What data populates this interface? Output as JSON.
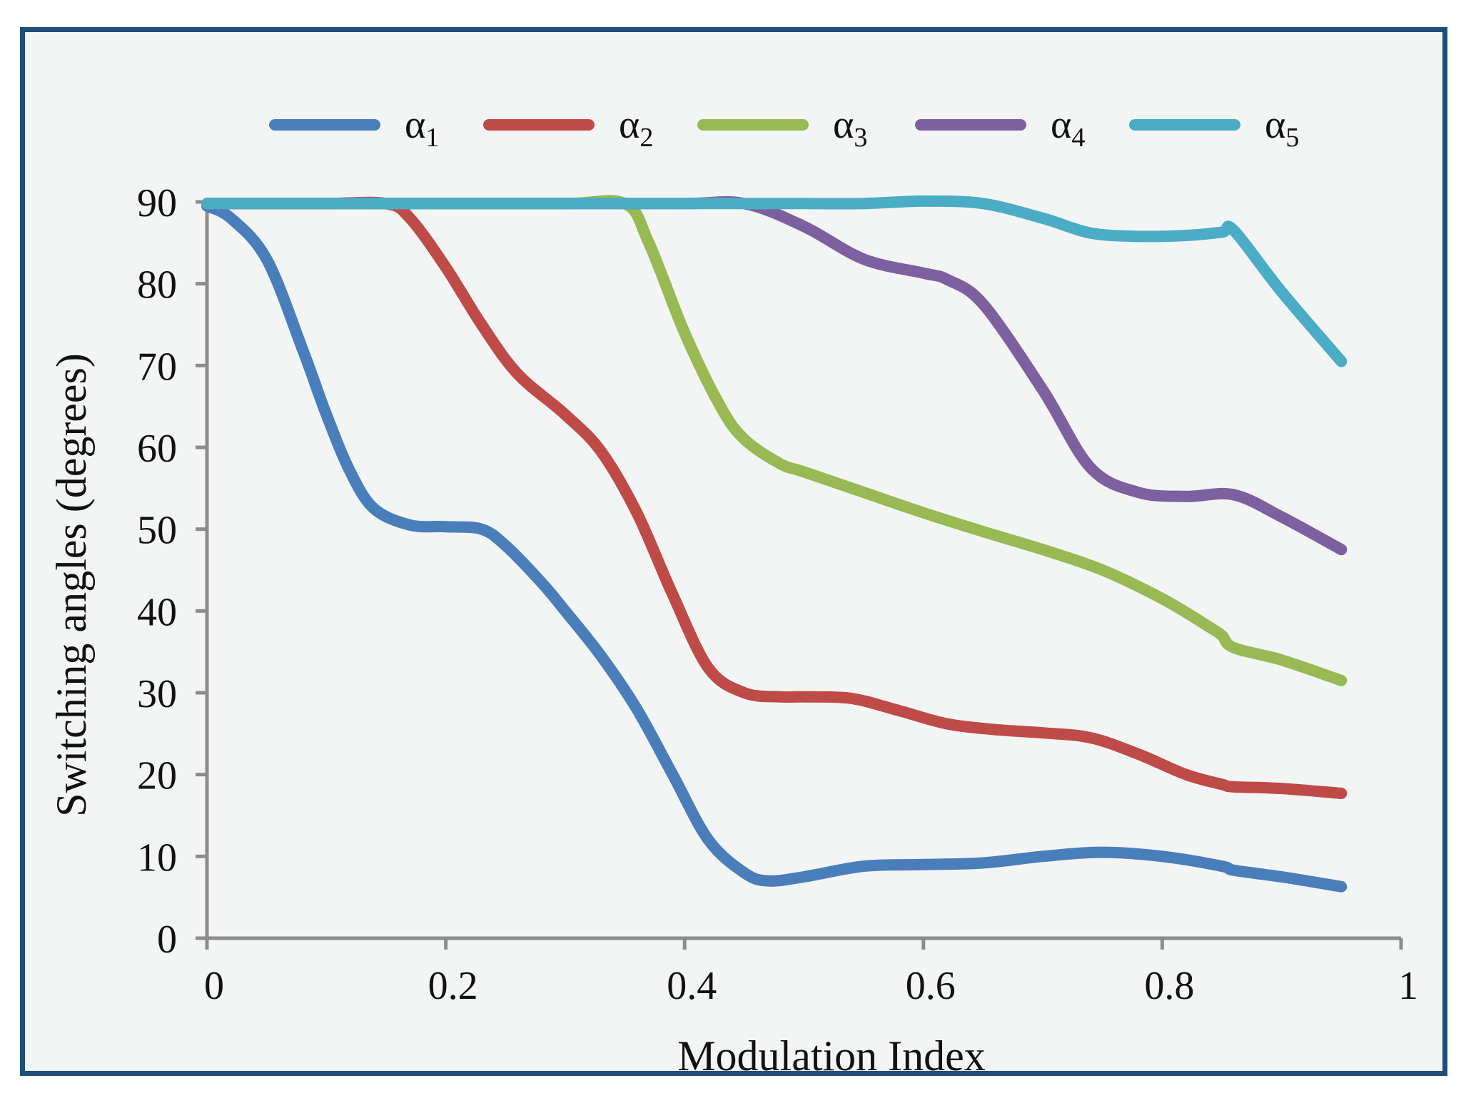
{
  "chart_data": {
    "type": "line",
    "title": "",
    "xlabel": "Modulation Index",
    "ylabel": "Switching angles (degrees)",
    "xlim": [
      0,
      1
    ],
    "ylim": [
      0,
      90
    ],
    "xticks": [
      0,
      0.2,
      0.4,
      0.6,
      0.8,
      1
    ],
    "xtick_labels": [
      "0",
      "0.2",
      "0.4",
      "0.6",
      "0.8",
      "1"
    ],
    "yticks": [
      0,
      10,
      20,
      30,
      40,
      50,
      60,
      70,
      80,
      90
    ],
    "ytick_labels": [
      "0",
      "10",
      "20",
      "30",
      "40",
      "50",
      "60",
      "70",
      "80",
      "90"
    ],
    "grid": false,
    "legend_position": "top",
    "series": [
      {
        "name": "α1",
        "symbol": "α",
        "subscript": "1",
        "color": "#4a7ebb",
        "x": [
          0,
          0.02,
          0.05,
          0.08,
          0.1,
          0.12,
          0.14,
          0.17,
          0.2,
          0.23,
          0.25,
          0.28,
          0.3,
          0.33,
          0.36,
          0.39,
          0.42,
          0.45,
          0.47,
          0.5,
          0.55,
          0.6,
          0.65,
          0.7,
          0.75,
          0.8,
          0.85,
          0.86,
          0.9,
          0.95
        ],
        "y": [
          89.5,
          88,
          83,
          72,
          64,
          57,
          52.5,
          50.5,
          50.3,
          50,
          48,
          43.5,
          40,
          34.5,
          28,
          20,
          12,
          8,
          7,
          7.5,
          8.8,
          9,
          9.2,
          10,
          10.5,
          10,
          8.8,
          8.3,
          7.5,
          6.3
        ]
      },
      {
        "name": "α2",
        "symbol": "α",
        "subscript": "2",
        "color": "#be4b48",
        "x": [
          0,
          0.05,
          0.1,
          0.15,
          0.17,
          0.2,
          0.23,
          0.26,
          0.3,
          0.33,
          0.36,
          0.39,
          0.42,
          0.45,
          0.48,
          0.5,
          0.54,
          0.58,
          0.62,
          0.66,
          0.7,
          0.74,
          0.78,
          0.82,
          0.85,
          0.86,
          0.9,
          0.95
        ],
        "y": [
          89.8,
          89.8,
          89.8,
          89.8,
          88,
          82,
          75,
          69,
          64,
          59.5,
          52,
          42,
          33,
          30,
          29.5,
          29.5,
          29.3,
          27.8,
          26.2,
          25.5,
          25.1,
          24.5,
          22.5,
          20,
          18.8,
          18.5,
          18.3,
          17.7
        ]
      },
      {
        "name": "α3",
        "symbol": "α",
        "subscript": "3",
        "color": "#98b954",
        "x": [
          0,
          0.1,
          0.2,
          0.3,
          0.35,
          0.37,
          0.4,
          0.43,
          0.45,
          0.48,
          0.5,
          0.55,
          0.6,
          0.65,
          0.7,
          0.75,
          0.8,
          0.84,
          0.85,
          0.86,
          0.9,
          0.95
        ],
        "y": [
          89.8,
          89.8,
          89.8,
          89.8,
          89.8,
          85,
          74,
          65,
          61,
          58,
          57,
          54.5,
          52,
          49.7,
          47.5,
          45,
          41.5,
          38,
          37,
          35.5,
          34,
          31.5
        ]
      },
      {
        "name": "α4",
        "symbol": "α",
        "subscript": "4",
        "color": "#7d60a0",
        "x": [
          0,
          0.1,
          0.2,
          0.3,
          0.4,
          0.45,
          0.5,
          0.55,
          0.6,
          0.62,
          0.65,
          0.7,
          0.74,
          0.78,
          0.82,
          0.86,
          0.9,
          0.95
        ],
        "y": [
          89.8,
          89.8,
          89.8,
          89.8,
          89.8,
          89.8,
          87,
          83,
          81.3,
          80.5,
          77.5,
          67,
          57.5,
          54.5,
          54,
          54.2,
          51.5,
          47.5
        ]
      },
      {
        "name": "α5",
        "symbol": "α",
        "subscript": "5",
        "color": "#4bacc6",
        "x": [
          0,
          0.1,
          0.2,
          0.3,
          0.4,
          0.5,
          0.55,
          0.6,
          0.65,
          0.7,
          0.74,
          0.78,
          0.82,
          0.85,
          0.86,
          0.9,
          0.95
        ],
        "y": [
          89.8,
          89.8,
          89.8,
          89.8,
          89.8,
          89.8,
          89.8,
          90.1,
          89.8,
          88,
          86.2,
          85.8,
          85.9,
          86.3,
          86.5,
          79,
          70.5
        ]
      }
    ]
  }
}
